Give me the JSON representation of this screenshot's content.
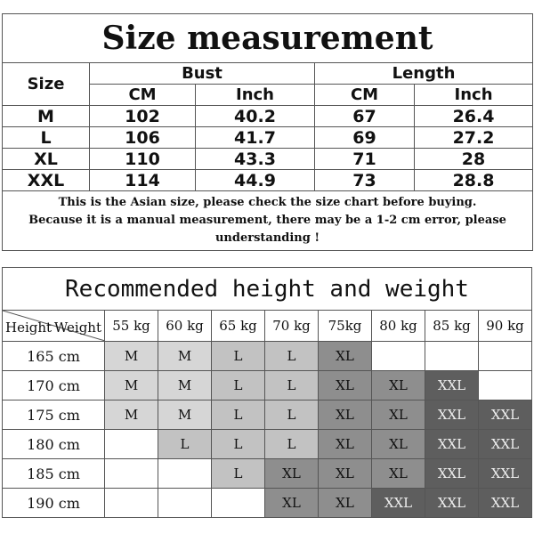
{
  "size_table": {
    "title": "Size measurement",
    "size_header": "Size",
    "groups": [
      "Bust",
      "Length"
    ],
    "units": [
      "CM",
      "Inch",
      "CM",
      "Inch"
    ],
    "rows": [
      [
        "M",
        "102",
        "40.2",
        "67",
        "26.4"
      ],
      [
        "L",
        "106",
        "41.7",
        "69",
        "27.2"
      ],
      [
        "XL",
        "110",
        "43.3",
        "71",
        "28"
      ],
      [
        "XXL",
        "114",
        "44.9",
        "73",
        "28.8"
      ]
    ],
    "note_line1": "This is the Asian size, please check the size chart before buying.",
    "note_line2": "Because it is a manual measurement, there may be a 1-2 cm error, please understanding !"
  },
  "recommend_table": {
    "title": "Recommended height and weight",
    "corner_height": "Height",
    "corner_weight": "Weight",
    "weights": [
      "55 kg",
      "60 kg",
      "65 kg",
      "70 kg",
      "75kg",
      "80 kg",
      "85 kg",
      "90 kg"
    ],
    "rows": [
      {
        "height": "165 cm",
        "sizes": [
          "M",
          "M",
          "L",
          "L",
          "XL",
          "",
          "",
          ""
        ]
      },
      {
        "height": "170 cm",
        "sizes": [
          "M",
          "M",
          "L",
          "L",
          "XL",
          "XL",
          "XXL",
          ""
        ]
      },
      {
        "height": "175 cm",
        "sizes": [
          "M",
          "M",
          "L",
          "L",
          "XL",
          "XL",
          "XXL",
          "XXL"
        ]
      },
      {
        "height": "180 cm",
        "sizes": [
          "",
          "L",
          "L",
          "L",
          "XL",
          "XL",
          "XXL",
          "XXL"
        ]
      },
      {
        "height": "185 cm",
        "sizes": [
          "",
          "",
          "L",
          "XL",
          "XL",
          "XL",
          "XXL",
          "XXL"
        ]
      },
      {
        "height": "190 cm",
        "sizes": [
          "",
          "",
          "",
          "XL",
          "XL",
          "XXL",
          "XXL",
          "XXL"
        ]
      }
    ],
    "size_colors": {
      "M": "#d6d6d6",
      "L": "#c2c2c2",
      "XL": "#8e8e8e",
      "XXL": "#5e5e5e"
    }
  }
}
